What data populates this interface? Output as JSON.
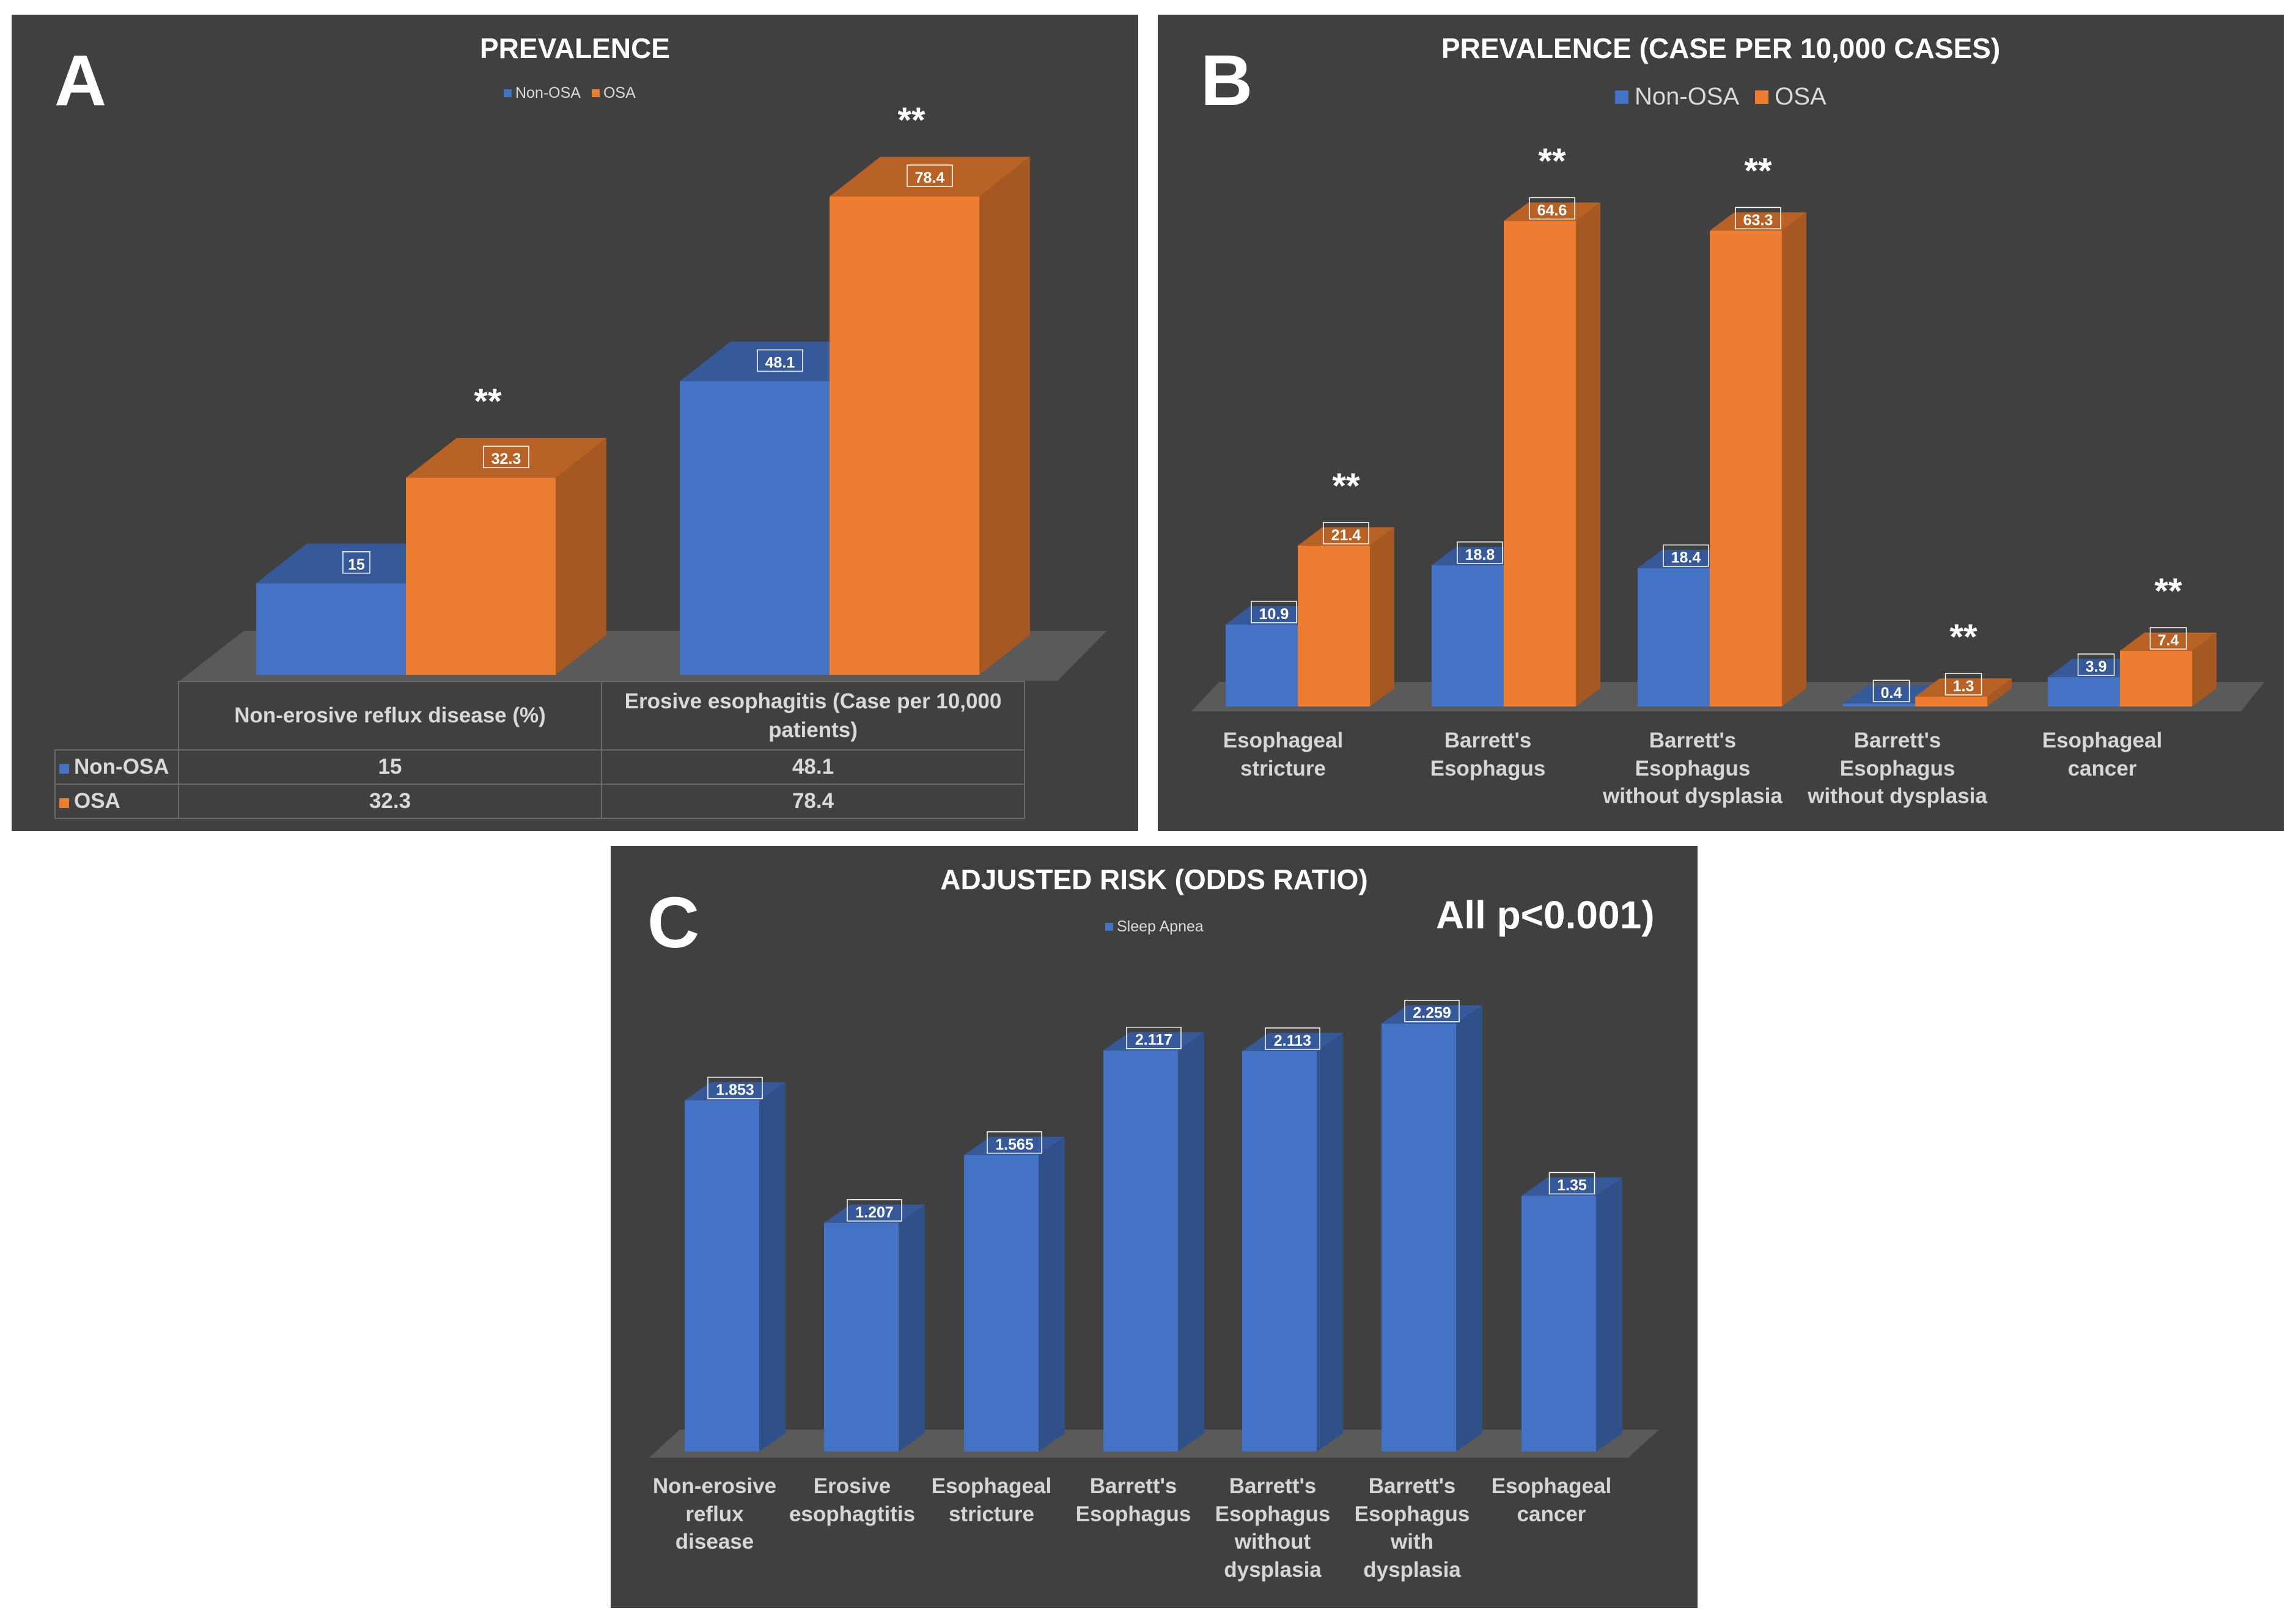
{
  "colors": {
    "panel_bg": "#404040",
    "floor": "#5a5a5a",
    "non_osa": "#4472C4",
    "osa": "#ED7D31",
    "sleep_apnea": "#4472C4",
    "text": "#ffffff",
    "label_text": "#d6d6d6"
  },
  "panels": {
    "a": {
      "letter": "A",
      "title": "PREVALENCE"
    },
    "b": {
      "letter": "B",
      "title": "PREVALENCE (CASE PER 10,000 CASES)"
    },
    "c": {
      "letter": "C",
      "title": "ADJUSTED RISK (ODDS RATIO)",
      "note": "All p<0.001)"
    }
  },
  "chart_data": [
    {
      "id": "A",
      "type": "bar",
      "title": "PREVALENCE",
      "legend": [
        "Non-OSA",
        "OSA"
      ],
      "categories": [
        "Non-erosive reflux disease (%)",
        "Erosive esophagitis (Case per 10,000 patients)"
      ],
      "series": [
        {
          "name": "Non-OSA",
          "values": [
            15,
            48.1
          ]
        },
        {
          "name": "OSA",
          "values": [
            32.3,
            78.4
          ]
        }
      ],
      "significance": [
        "**",
        "**"
      ],
      "ylim": [
        0,
        80
      ],
      "table": {
        "headers": [
          "Non-erosive reflux disease (%)",
          "Erosive esophagitis (Case per 10,000 patients)"
        ],
        "rows": [
          {
            "name": "Non-OSA",
            "values": [
              "15",
              "48.1"
            ]
          },
          {
            "name": "OSA",
            "values": [
              "32.3",
              "78.4"
            ]
          }
        ]
      }
    },
    {
      "id": "B",
      "type": "bar",
      "title": "PREVALENCE (CASE PER 10,000 CASES)",
      "legend": [
        "Non-OSA",
        "OSA"
      ],
      "categories": [
        "Esophageal stricture",
        "Barrett's Esophagus",
        "Barrett's Esophagus without dysplasia",
        "Barrett's Esophagus without dysplasia",
        "Esophageal cancer"
      ],
      "series": [
        {
          "name": "Non-OSA",
          "values": [
            10.9,
            18.8,
            18.4,
            0.4,
            3.9
          ]
        },
        {
          "name": "OSA",
          "values": [
            21.4,
            64.6,
            63.3,
            1.3,
            7.4
          ]
        }
      ],
      "significance": [
        "**",
        "**",
        "**",
        "**",
        "**"
      ],
      "ylim": [
        0,
        70
      ]
    },
    {
      "id": "C",
      "type": "bar",
      "title": "ADJUSTED RISK (ODDS RATIO)",
      "legend": [
        "Sleep Apnea"
      ],
      "annotation": "All p<0.001)",
      "categories": [
        "Non-erosive reflux disease",
        "Erosive esophagtitis",
        "Esophageal stricture",
        "Barrett's Esophagus",
        "Barrett's Esophagus without dysplasia",
        "Barrett's Esophagus with dysplasia",
        "Esophageal cancer"
      ],
      "series": [
        {
          "name": "Sleep Apnea",
          "values": [
            1.853,
            1.207,
            1.565,
            2.117,
            2.113,
            2.259,
            1.35
          ]
        }
      ],
      "ylim": [
        0,
        2.3
      ]
    }
  ]
}
